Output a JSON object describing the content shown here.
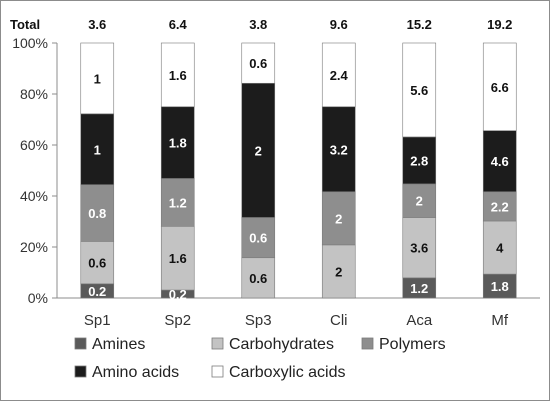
{
  "chart_data": {
    "type": "bar",
    "stacked": true,
    "normalized_percent": true,
    "total_caption": "Total",
    "categories": [
      "Sp1",
      "Sp2",
      "Sp3",
      "Cli",
      "Aca",
      "Mf"
    ],
    "totals": [
      "3.6",
      "6.4",
      "3.8",
      "9.6",
      "15.2",
      "19.2"
    ],
    "series": [
      {
        "name": "Amines",
        "color": "#5a5a5a",
        "label_color": "#ffffff",
        "values": [
          0.2,
          0.2,
          0,
          0,
          1.2,
          1.8
        ]
      },
      {
        "name": "Carbohydrates",
        "color": "#c3c3c3",
        "label_color": "#111111",
        "values": [
          0.6,
          1.6,
          0.6,
          2,
          3.6,
          4
        ]
      },
      {
        "name": "Polymers",
        "color": "#8e8e8e",
        "label_color": "#ffffff",
        "values": [
          0.8,
          1.2,
          0.6,
          2,
          2,
          2.2
        ]
      },
      {
        "name": "Amino acids",
        "color": "#1c1c1c",
        "label_color": "#ffffff",
        "values": [
          1,
          1.8,
          2,
          3.2,
          2.8,
          4.6
        ]
      },
      {
        "name": "Carboxylic acids",
        "color": "#ffffff",
        "label_color": "#111111",
        "values": [
          1,
          1.6,
          0.6,
          2.4,
          5.6,
          6.6
        ]
      }
    ],
    "y_ticks": [
      "0%",
      "20%",
      "40%",
      "60%",
      "80%",
      "100%"
    ],
    "ylim": [
      0,
      100
    ],
    "grid": false,
    "legend_position": "bottom"
  }
}
